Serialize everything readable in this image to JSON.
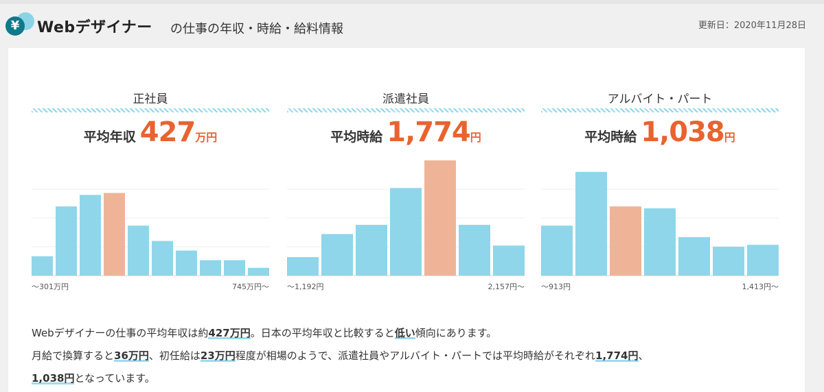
{
  "header": {
    "title": "Webデザイナー",
    "subtitle": "の仕事の年収・時給・給料情報",
    "updated": "更新日：2020年11月28日",
    "icon": "yen-coin-icon"
  },
  "columns": [
    {
      "title": "正社員",
      "avg_label": "平均年収",
      "avg_value": "427",
      "avg_unit": "万円",
      "axis_min": "〜301万円",
      "axis_max": "745万円〜",
      "chart_data": {
        "type": "bar",
        "values": [
          5,
          18,
          21,
          21.5,
          13,
          9,
          6.5,
          4,
          4,
          2
        ],
        "highlight_index": 3,
        "ylim": [
          0,
          30
        ]
      }
    },
    {
      "title": "派遣社員",
      "avg_label": "平均時給",
      "avg_value": "1,774",
      "avg_unit": "円",
      "axis_min": "〜1,192円",
      "axis_max": "2,157円〜",
      "chart_data": {
        "type": "bar",
        "values": [
          4,
          9,
          11,
          19,
          25,
          11,
          6.5
        ],
        "highlight_index": 4,
        "ylim": [
          0,
          25
        ]
      }
    },
    {
      "title": "アルバイト・パート",
      "avg_label": "平均時給",
      "avg_value": "1,038",
      "avg_unit": "円",
      "axis_min": "〜913円",
      "axis_max": "1,413円〜",
      "chart_data": {
        "type": "bar",
        "values": [
          13,
          27,
          18,
          17.5,
          10,
          7.5,
          8
        ],
        "highlight_index": 2,
        "ylim": [
          0,
          30
        ]
      }
    }
  ],
  "summary": {
    "l1_a": "Webデザイナーの仕事の平均年収は約",
    "l1_b": "427万円",
    "l1_c": "。日本の平均年収と比較すると",
    "l1_d": "低い",
    "l1_e": "傾向にあります。",
    "l2_a": "月給で換算すると",
    "l2_b": "36万円",
    "l2_c": "、初任給は",
    "l2_d": "23万円",
    "l2_e": "程度が相場のようで、派遣社員やアルバイト・パートでは平均時給がそれぞれ",
    "l2_f": "1,774円",
    "l2_g": "、",
    "l3_a": "1,038円",
    "l3_b": "となっています。"
  },
  "colors": {
    "bar": "#8fd6ea",
    "highlight": "#efb497",
    "accent": "#e8632f"
  }
}
